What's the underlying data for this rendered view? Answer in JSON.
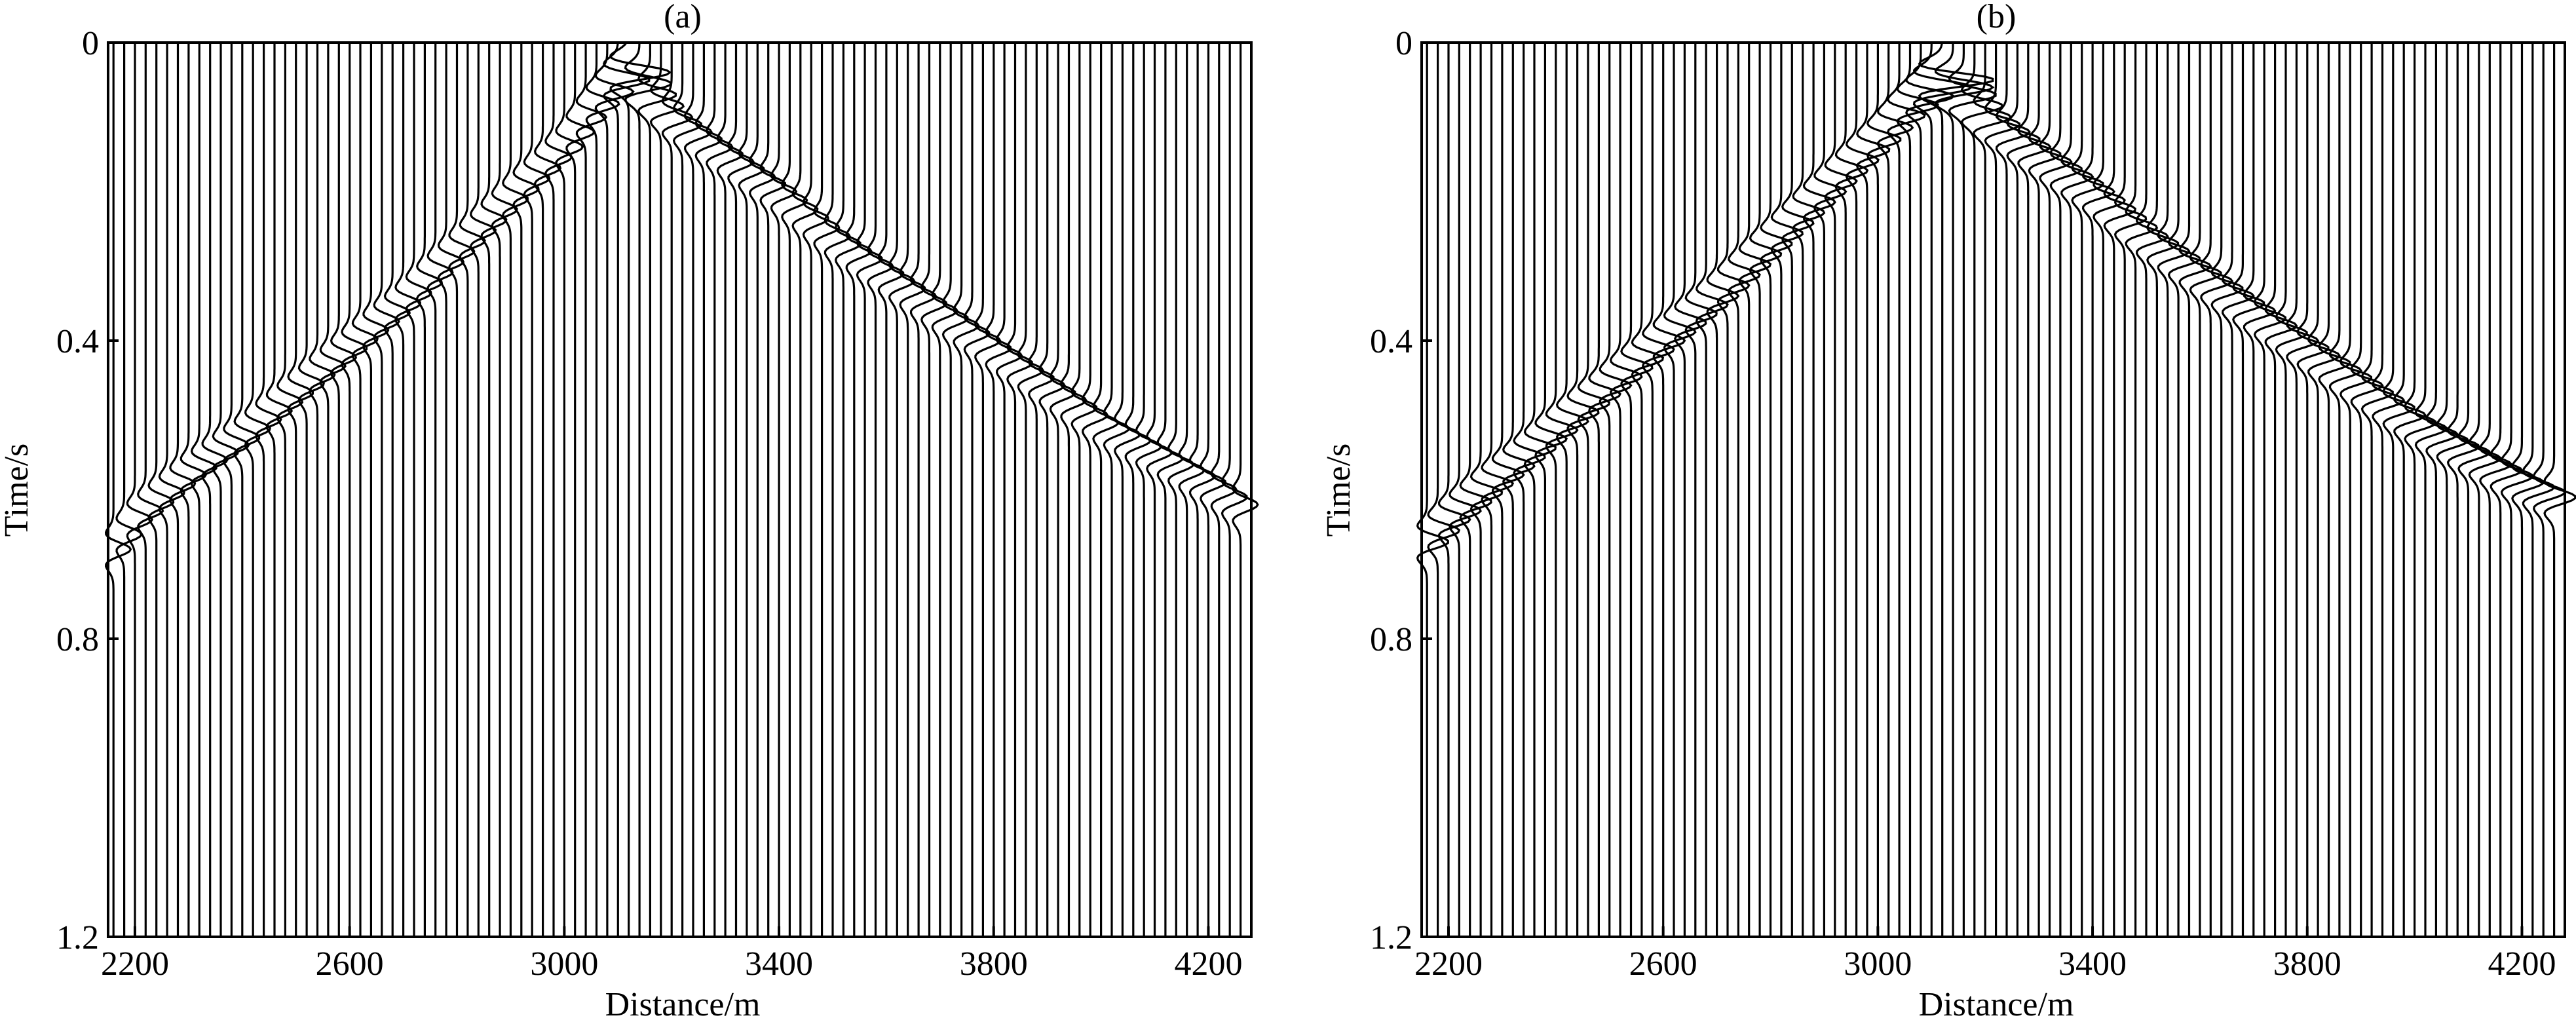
{
  "chart_data": [
    {
      "type": "line",
      "title": "(a)",
      "xlabel": "Distance/m",
      "ylabel": "Time/s",
      "xlim": [
        2150,
        4280
      ],
      "ylim": [
        1.2,
        0
      ],
      "y_inverted": true,
      "xticks": [
        2200,
        2600,
        3000,
        3400,
        3800,
        4200
      ],
      "yticks": [
        0,
        0.4,
        0.8,
        1.2
      ],
      "trace_spacing_m": 20,
      "trace_x_range": [
        2160,
        4260
      ],
      "source_x": 3120,
      "series": [
        {
          "x": [
            2160,
            2200,
            2300,
            2400,
            2500,
            2600,
            2700,
            2800,
            2900,
            3000,
            3050,
            3100,
            3120
          ],
          "y": [
            0.68,
            0.64,
            0.58,
            0.53,
            0.47,
            0.41,
            0.35,
            0.28,
            0.21,
            0.14,
            0.09,
            0.05,
            0.04
          ]
        },
        {
          "x": [
            3120,
            3160,
            3200,
            3300,
            3400,
            3500,
            3600,
            3700,
            3800,
            3900,
            4000,
            4100,
            4200,
            4260
          ],
          "y": [
            0.04,
            0.07,
            0.1,
            0.15,
            0.2,
            0.26,
            0.31,
            0.36,
            0.41,
            0.46,
            0.51,
            0.55,
            0.59,
            0.62
          ]
        }
      ],
      "grid": false,
      "legend": "none"
    },
    {
      "type": "line",
      "title": "(b)",
      "xlabel": "Distance/m",
      "ylabel": "Time/s",
      "xlim": [
        2150,
        4280
      ],
      "ylim": [
        1.2,
        0
      ],
      "y_inverted": true,
      "xticks": [
        2200,
        2600,
        3000,
        3400,
        3800,
        4200
      ],
      "yticks": [
        0,
        0.4,
        0.8,
        1.2
      ],
      "trace_spacing_m": 20,
      "trace_x_range": [
        2160,
        4260
      ],
      "source_x": 3120,
      "series": [
        {
          "x": [
            2160,
            2200,
            2300,
            2400,
            2500,
            2600,
            2700,
            2800,
            2900,
            3000,
            3050,
            3100,
            3120
          ],
          "y": [
            0.67,
            0.64,
            0.58,
            0.52,
            0.46,
            0.4,
            0.34,
            0.27,
            0.2,
            0.13,
            0.09,
            0.06,
            0.05
          ]
        },
        {
          "x": [
            3120,
            3160,
            3200,
            3300,
            3400,
            3500,
            3600,
            3700,
            3800,
            3900,
            4000,
            4100,
            4200,
            4260
          ],
          "y": [
            0.05,
            0.07,
            0.1,
            0.15,
            0.2,
            0.26,
            0.31,
            0.36,
            0.41,
            0.46,
            0.51,
            0.55,
            0.59,
            0.61
          ]
        }
      ],
      "grid": false,
      "legend": "none"
    }
  ]
}
